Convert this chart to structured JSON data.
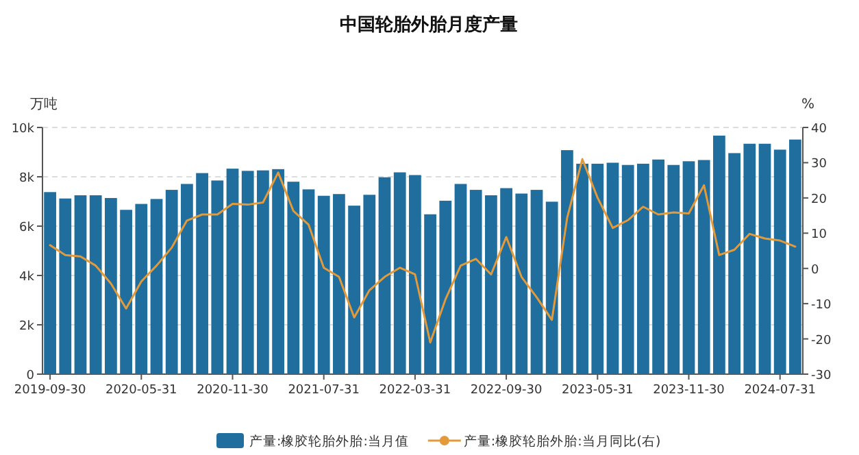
{
  "chart_data": {
    "type": "bar",
    "title": "中国轮胎外胎月度产量",
    "ylabel": "万吨",
    "y2label": "%",
    "categories": [
      "2019-09-30",
      null,
      null,
      null,
      null,
      null,
      "2020-05-31",
      null,
      null,
      null,
      null,
      null,
      "2020-11-30",
      null,
      null,
      null,
      null,
      null,
      "2021-07-31",
      null,
      null,
      null,
      null,
      null,
      "2022-03-31",
      null,
      null,
      null,
      null,
      null,
      "2022-09-30",
      null,
      null,
      null,
      null,
      null,
      "2023-05-31",
      null,
      null,
      null,
      null,
      null,
      "2023-11-30",
      null,
      null,
      null,
      null,
      null,
      "2024-07-31",
      null
    ],
    "series": [
      {
        "name": "产量:橡胶轮胎外胎:当月值",
        "color": "#1f6e9e",
        "values": [
          7380,
          7120,
          7250,
          7250,
          7140,
          6660,
          6900,
          7100,
          7470,
          7710,
          8150,
          7850,
          8330,
          8240,
          8260,
          8310,
          7800,
          7490,
          7230,
          7300,
          6830,
          7270,
          7980,
          8180,
          8070,
          6480,
          7030,
          7710,
          7470,
          7250,
          7540,
          7320,
          7470,
          6990,
          9080,
          8530,
          8530,
          8570,
          8480,
          8530,
          8700,
          8480,
          8630,
          8680,
          9670,
          8960,
          9340,
          9340,
          9100,
          9510
        ]
      },
      {
        "name": "产量:橡胶轮胎外胎:当月同比(右)",
        "type": "line",
        "axis": "y2",
        "color": "#e39a3a",
        "values": [
          6.6,
          3.8,
          3.4,
          0.8,
          -4.3,
          -11.4,
          -3.7,
          0.8,
          5.9,
          13.6,
          15.3,
          15.3,
          18.3,
          18.1,
          18.7,
          27.2,
          16.3,
          12.4,
          0.2,
          -2.4,
          -13.9,
          -6.2,
          -2.4,
          0.2,
          -1.7,
          -21.0,
          -8.8,
          0.8,
          2.7,
          -1.7,
          8.9,
          -2.4,
          -8.2,
          -14.6,
          14.3,
          31.0,
          20.1,
          11.5,
          13.7,
          17.5,
          15.3,
          15.9,
          15.6,
          23.6,
          3.8,
          5.3,
          9.8,
          8.5,
          7.9,
          6.2
        ]
      }
    ],
    "ylim": [
      0,
      10000
    ],
    "yticks": [
      0,
      {
        "value": 2000,
        "label": "2k"
      },
      {
        "value": 4000,
        "label": "4k"
      },
      {
        "value": 6000,
        "label": "6k"
      },
      {
        "value": 8000,
        "label": "8k"
      },
      {
        "value": 10000,
        "label": "10k"
      }
    ],
    "y2lim": [
      -30,
      40
    ],
    "y2ticks": [
      -30,
      -20,
      -10,
      0,
      10,
      20,
      30,
      40
    ],
    "grid": "y",
    "legend": "bottom"
  }
}
